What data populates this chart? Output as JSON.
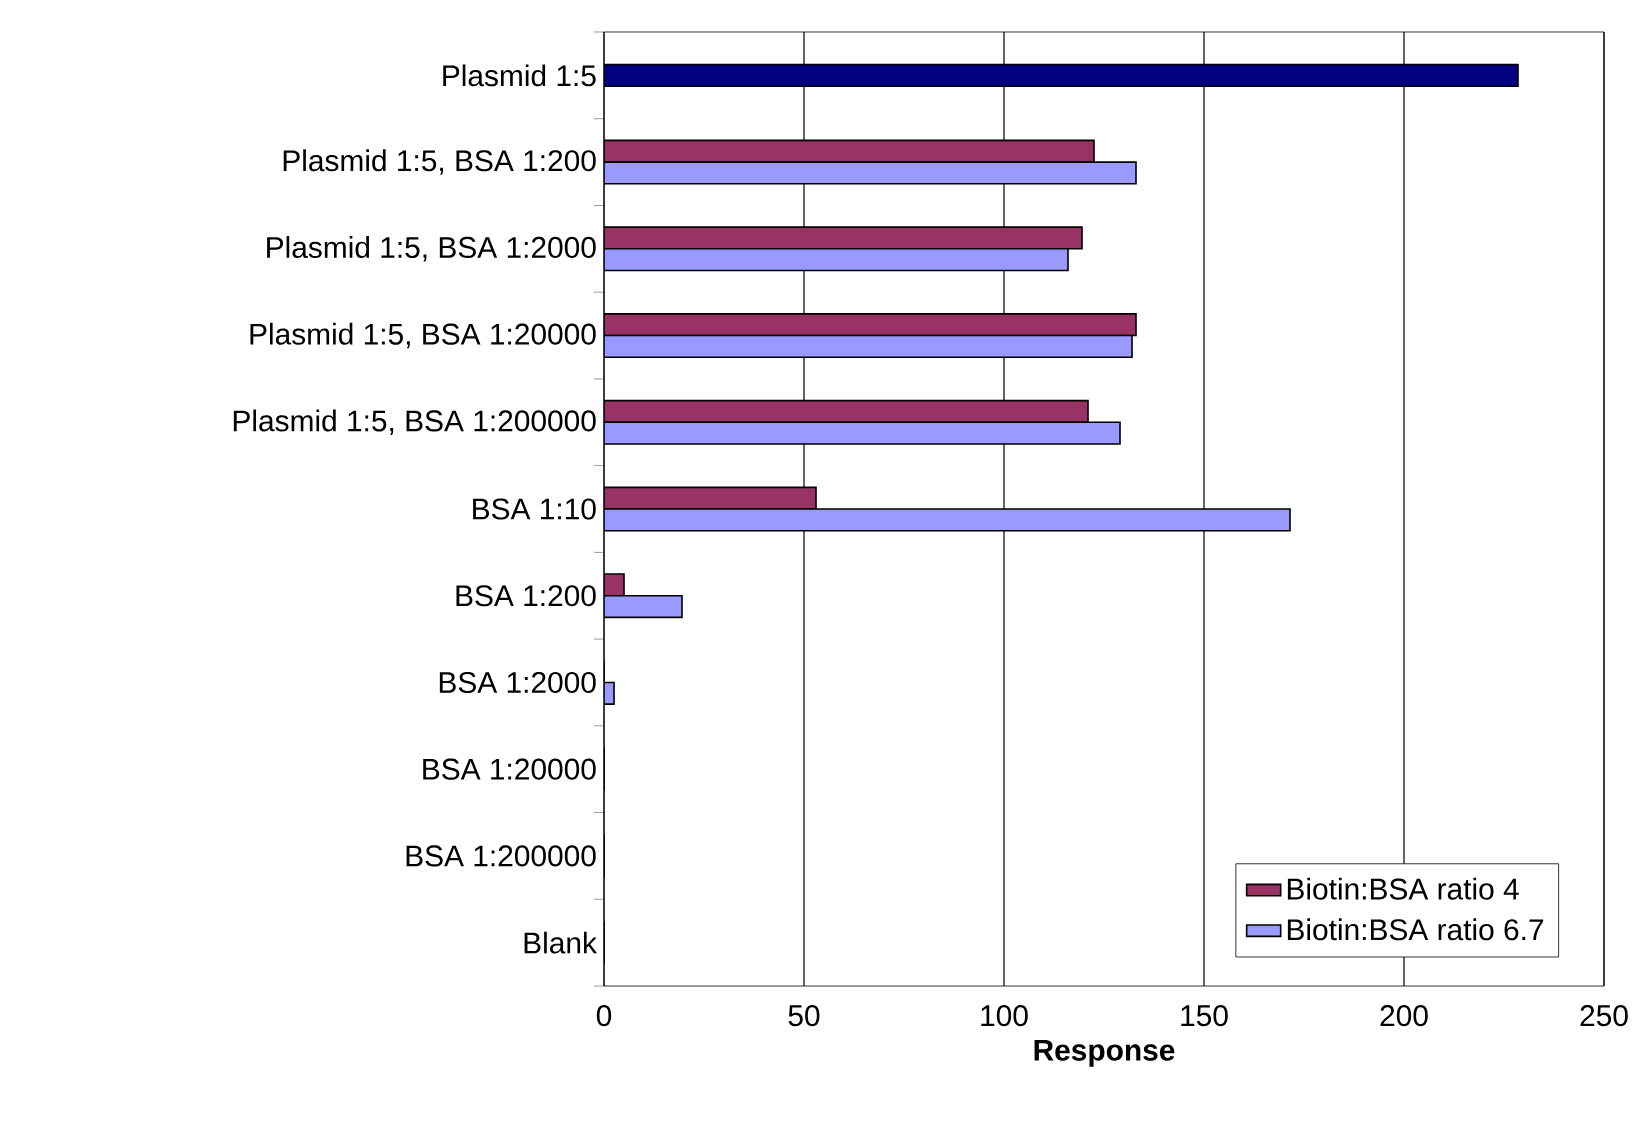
{
  "chart_data": {
    "type": "bar",
    "orientation": "horizontal",
    "xlabel": "Response",
    "categories": [
      "Plasmid 1:5",
      "Plasmid 1:5, BSA 1:200",
      "Plasmid 1:5, BSA 1:2000",
      "Plasmid 1:5, BSA 1:20000",
      "Plasmid 1:5, BSA 1:200000",
      "BSA 1:10",
      "BSA 1:200",
      "BSA 1:2000",
      "BSA 1:20000",
      "BSA 1:200000",
      "Blank"
    ],
    "series": [
      {
        "color": "#000080",
        "values": [
          228.5,
          null,
          null,
          null,
          null,
          null,
          null,
          null,
          null,
          null,
          null
        ]
      },
      {
        "name": "Biotin:BSA ratio 4",
        "color": "#993366",
        "values": [
          null,
          122.5,
          119.5,
          133,
          121,
          53,
          5,
          0,
          0,
          0,
          0
        ]
      },
      {
        "name": "Biotin:BSA ratio 6.7",
        "color": "#9999ff",
        "values": [
          null,
          133,
          116,
          132,
          129,
          171.5,
          19.5,
          2.5,
          0,
          0,
          0
        ]
      }
    ],
    "xlim": [
      0,
      250
    ],
    "xticks": [
      0,
      50,
      100,
      150,
      200,
      250
    ],
    "grid": "x",
    "legend": "bottom right"
  }
}
